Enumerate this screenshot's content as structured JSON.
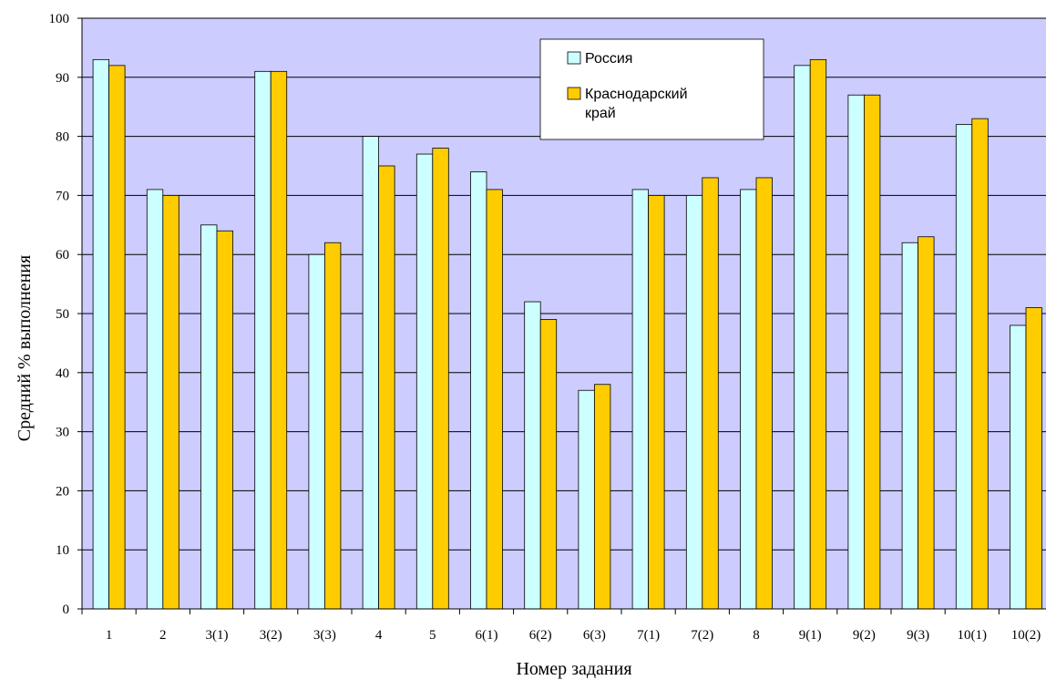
{
  "chart_data": {
    "type": "bar",
    "title": "",
    "xlabel": "Номер задания",
    "ylabel": "Средний % выполнения",
    "ylim": [
      0,
      100
    ],
    "ytick_step": 10,
    "grid": true,
    "legend_position": "top-right",
    "categories": [
      "1",
      "2",
      "3(1)",
      "3(2)",
      "3(3)",
      "4",
      "5",
      "6(1)",
      "6(2)",
      "6(3)",
      "7(1)",
      "7(2)",
      "8",
      "9(1)",
      "9(2)",
      "9(3)",
      "10(1)",
      "10(2)"
    ],
    "series": [
      {
        "name": "Россия",
        "color": "#ccffff",
        "values": [
          93,
          71,
          65,
          91,
          60,
          80,
          77,
          74,
          52,
          37,
          71,
          70,
          71,
          92,
          87,
          62,
          82,
          48
        ]
      },
      {
        "name": "Краснодарский край",
        "color": "#ffcc00",
        "values": [
          92,
          70,
          64,
          91,
          62,
          75,
          78,
          71,
          49,
          38,
          70,
          73,
          73,
          93,
          87,
          63,
          83,
          51
        ]
      }
    ],
    "colors": {
      "plot_background": "#ccccff",
      "gridline": "#000000"
    }
  }
}
